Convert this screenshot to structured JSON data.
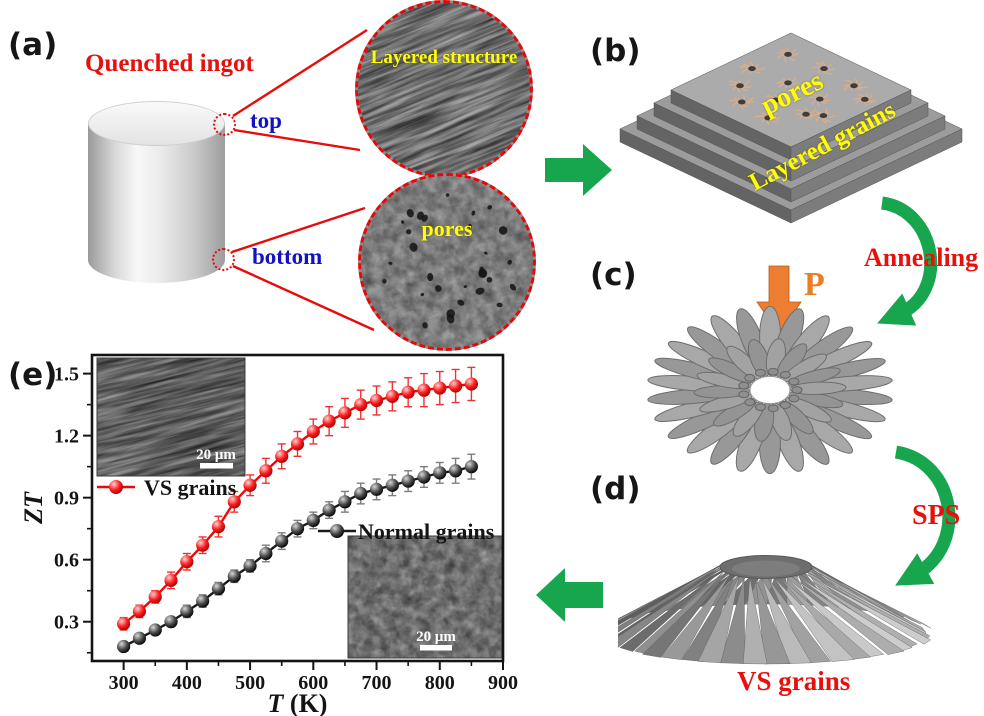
{
  "figure": {
    "panel_a": {
      "tag": "(a)",
      "title": "Quenched ingot",
      "marker_top_label": "top",
      "marker_bottom_label": "bottom",
      "inset_top_label": "Layered structure",
      "inset_bottom_label": "pores"
    },
    "panel_b": {
      "tag": "(b)",
      "label_pores": "pores",
      "label_layered_grains": "Layered grains"
    },
    "panel_c": {
      "tag": "(c)",
      "label_pressure": "P",
      "label_annealing": "Annealing"
    },
    "panel_d": {
      "tag": "(d)",
      "label_sps": "SPS",
      "label_vs_grains": "VS grains"
    },
    "panel_e": {
      "tag": "(e)"
    }
  },
  "colors": {
    "accent_red": "#e8100c",
    "accent_blue": "#1212c4",
    "accent_yellow": "#ffff00",
    "arrow_green": "#17a64e",
    "arrow_orange": "#ed7d31",
    "series_red": "#ee0707",
    "series_black": "#1a1a1a"
  },
  "chart_data": {
    "type": "line",
    "title": "",
    "xlabel_italic": "T",
    "xlabel_units": " (K)",
    "ylabel": "ZT",
    "xlim": [
      250,
      900
    ],
    "ylim": [
      0.11,
      1.59
    ],
    "xticks": [
      300,
      400,
      500,
      600,
      700,
      800,
      900
    ],
    "xticks_minor": [
      350,
      450,
      550,
      650,
      750,
      850
    ],
    "yticks": [
      0.3,
      0.6,
      0.9,
      1.2,
      1.5
    ],
    "yticks_minor": [
      0.15,
      0.45,
      0.75,
      1.05,
      1.35
    ],
    "grid": false,
    "legend_position": "inside",
    "x": [
      300,
      325,
      350,
      375,
      400,
      425,
      450,
      475,
      500,
      525,
      550,
      575,
      600,
      625,
      650,
      675,
      700,
      725,
      750,
      775,
      800,
      825,
      850
    ],
    "series": [
      {
        "name": "VS grains",
        "color": "#ee0707",
        "error_color": "#ee3333",
        "values": [
          0.29,
          0.35,
          0.42,
          0.5,
          0.59,
          0.67,
          0.76,
          0.88,
          0.96,
          1.03,
          1.1,
          1.16,
          1.22,
          1.27,
          1.31,
          1.35,
          1.37,
          1.39,
          1.41,
          1.42,
          1.43,
          1.44,
          1.45
        ],
        "errors": [
          0.03,
          0.03,
          0.03,
          0.04,
          0.04,
          0.04,
          0.05,
          0.05,
          0.05,
          0.06,
          0.06,
          0.06,
          0.06,
          0.07,
          0.07,
          0.07,
          0.07,
          0.07,
          0.07,
          0.08,
          0.08,
          0.08,
          0.08
        ]
      },
      {
        "name": "Normal grains",
        "color": "#1a1a1a",
        "error_color": "#7d7d7d",
        "values": [
          0.18,
          0.22,
          0.26,
          0.3,
          0.35,
          0.4,
          0.46,
          0.52,
          0.57,
          0.63,
          0.69,
          0.75,
          0.79,
          0.84,
          0.88,
          0.92,
          0.94,
          0.96,
          0.98,
          1.0,
          1.02,
          1.03,
          1.05
        ],
        "errors": [
          0.02,
          0.02,
          0.02,
          0.02,
          0.03,
          0.03,
          0.03,
          0.03,
          0.03,
          0.04,
          0.04,
          0.04,
          0.04,
          0.04,
          0.05,
          0.05,
          0.05,
          0.05,
          0.05,
          0.05,
          0.05,
          0.06,
          0.06
        ]
      }
    ],
    "insets": [
      {
        "position": "top-left",
        "scale_label": "20 μm"
      },
      {
        "position": "bottom-right",
        "scale_label": "20 μm"
      }
    ]
  }
}
